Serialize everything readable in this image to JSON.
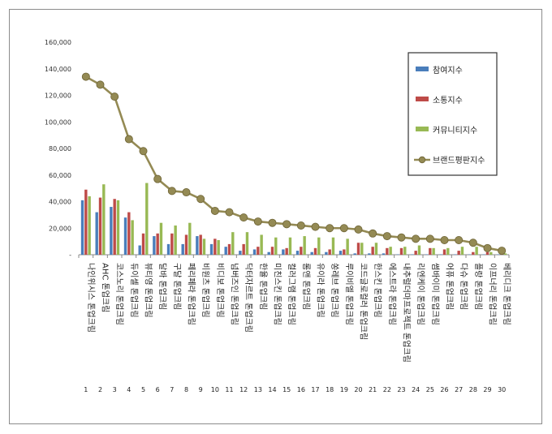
{
  "chart_data": {
    "type": "bar",
    "title": "",
    "xlabel": "",
    "ylabel": "",
    "ylim": [
      0,
      160000
    ],
    "yticks": [
      "160,000",
      "140,000",
      "120,000",
      "100,000",
      "80,000",
      "60,000",
      "40,000",
      "20,000",
      "-"
    ],
    "categories": [
      "나인위시스 톤업크림",
      "AHC 톤업크림",
      "코스노리 톤업크림",
      "듀이셀 톤업크림",
      "뷰티영 톤업크림",
      "달바 톤업크림",
      "구달 톤업크림",
      "페리페라 톤업크림",
      "비원츠 톤업크림",
      "비디보 톤업크림",
      "넘버즈인 톤업크림",
      "닥터자르트 톤업크림",
      "한율 톤업크림",
      "미친스킨 톤업크림",
      "컬러그램 톤업크림",
      "롬앤 톤업크림",
      "유이라 톤업크림",
      "쏭레브 톤업크림",
      "루이비엘 톤업크림",
      "코드글로컬러 톤업크림",
      "한스킨 톤업크림",
      "에스트라 톤업크림",
      "내추럴더마프로젝트 톤업크림",
      "리엔케이 톤업크림",
      "썸바이미 톤업크림",
      "어퓨 톤업크림",
      "다슈 톤업크림",
      "플랑 톤업크림",
      "이프너리 톤업크림",
      "베리디크 톤업크림"
    ],
    "index_numbers": [
      "1",
      "2",
      "3",
      "4",
      "5",
      "6",
      "7",
      "8",
      "9",
      "10",
      "11",
      "12",
      "13",
      "14",
      "15",
      "16",
      "17",
      "18",
      "19",
      "20",
      "21",
      "22",
      "23",
      "24",
      "25",
      "26",
      "27",
      "28",
      "29",
      "30"
    ],
    "legend_position": "top-right",
    "grid": false,
    "series": [
      {
        "name": "참여지수",
        "kind": "bar",
        "color": "#4a7ebb",
        "values": [
          41000,
          32000,
          36000,
          28000,
          7000,
          14000,
          8000,
          8000,
          14000,
          8000,
          6000,
          3000,
          4000,
          2000,
          4000,
          3000,
          2000,
          2000,
          3000,
          1000,
          1000,
          1000,
          300,
          300,
          300,
          300,
          300,
          300,
          300,
          300
        ]
      },
      {
        "name": "소통지수",
        "kind": "bar",
        "color": "#be4b48",
        "values": [
          49000,
          43000,
          42000,
          32000,
          16000,
          16000,
          16000,
          15000,
          15000,
          12000,
          8000,
          8000,
          6000,
          6000,
          5000,
          6000,
          5000,
          4000,
          4000,
          9000,
          6000,
          5000,
          5000,
          3000,
          5000,
          4000,
          3000,
          2000,
          2000,
          2000
        ]
      },
      {
        "name": "커뮤니티지수",
        "kind": "bar",
        "color": "#98b954",
        "values": [
          44000,
          53000,
          41000,
          26000,
          54000,
          24000,
          22000,
          24000,
          12000,
          11000,
          17000,
          17000,
          15000,
          13000,
          13000,
          14000,
          13000,
          13000,
          12000,
          9000,
          9000,
          6000,
          6000,
          7000,
          5000,
          5000,
          6000,
          6000,
          2000,
          1000
        ]
      },
      {
        "name": "브랜드평판지수",
        "kind": "line",
        "color": "#948a54",
        "values": [
          134000,
          128000,
          119000,
          87000,
          78000,
          57000,
          48000,
          47000,
          42000,
          33000,
          32000,
          28000,
          25000,
          24000,
          23000,
          22000,
          21000,
          20000,
          20000,
          19000,
          16000,
          14000,
          13000,
          12000,
          12000,
          11000,
          11000,
          9000,
          5000,
          3000
        ]
      }
    ]
  }
}
